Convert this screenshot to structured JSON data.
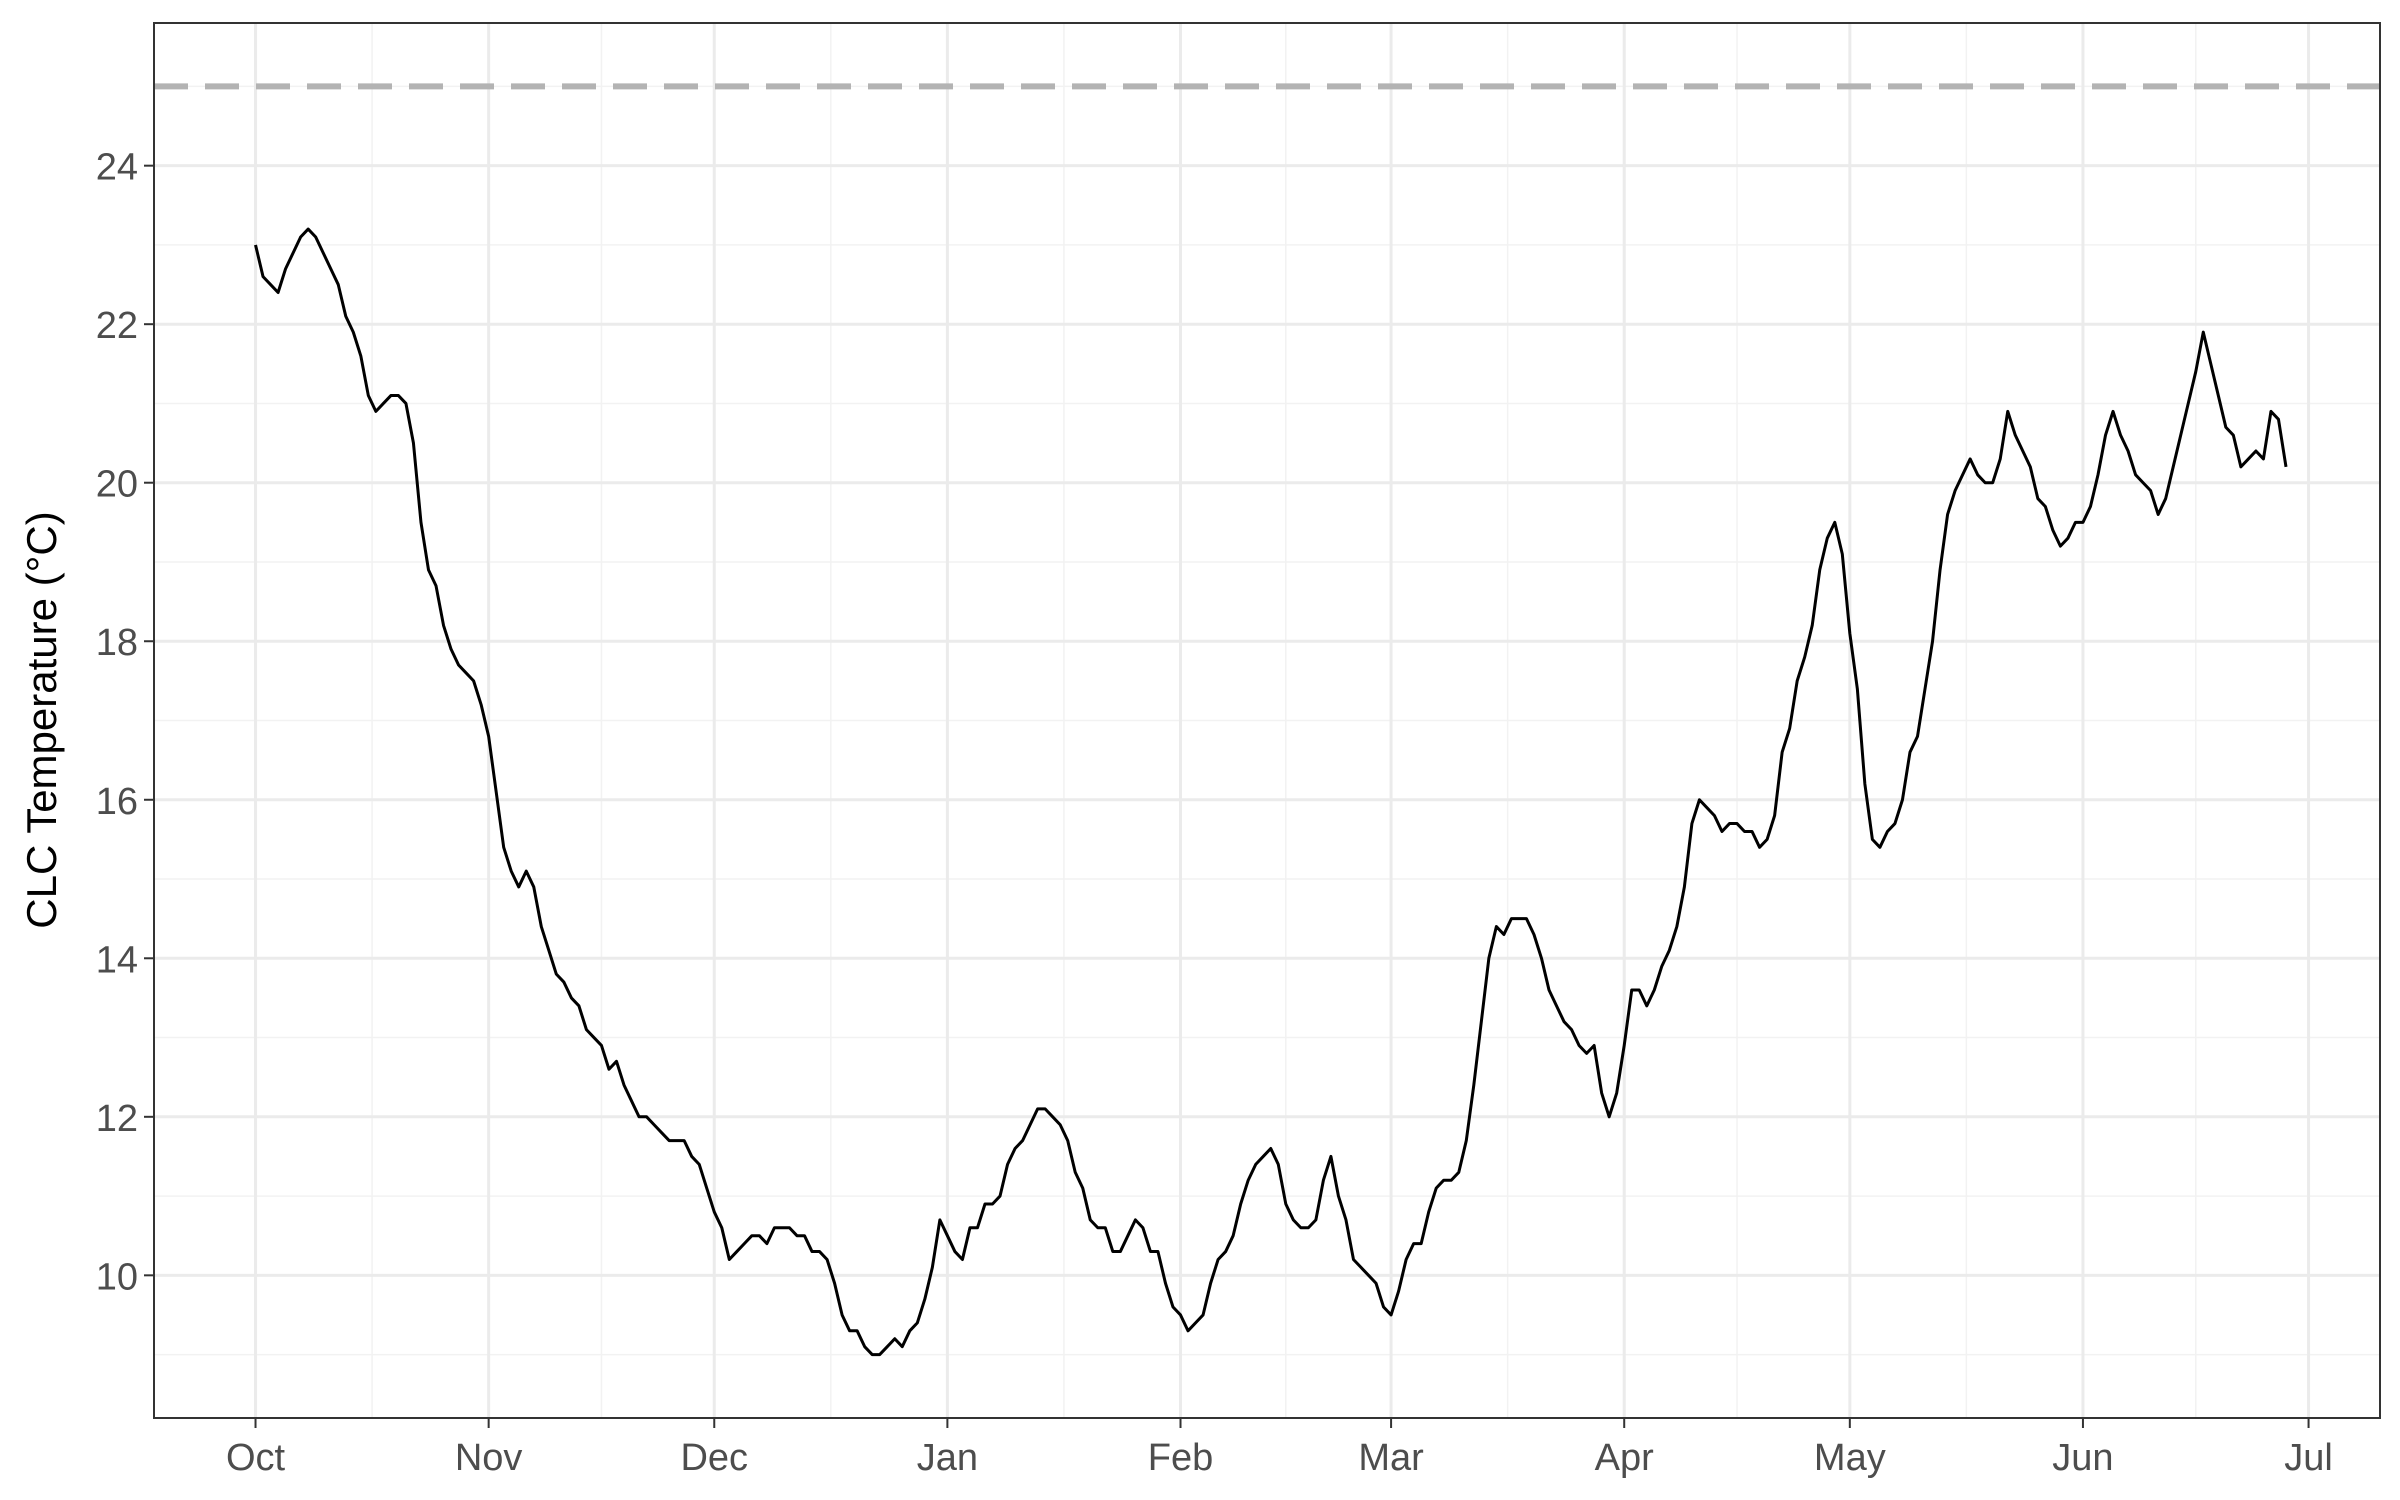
{
  "chart_data": {
    "type": "line",
    "y_label": "CLC Temperature (°C)",
    "color": "#000000",
    "hline": 25,
    "hline_color": "#b3b3b3",
    "grid": true,
    "xlim": [
      -13.5,
      282.5
    ],
    "xticks": [
      {
        "value": 0,
        "label": "Oct"
      },
      {
        "value": 31,
        "label": "Nov"
      },
      {
        "value": 61,
        "label": "Dec"
      },
      {
        "value": 92,
        "label": "Jan"
      },
      {
        "value": 123,
        "label": "Feb"
      },
      {
        "value": 151,
        "label": "Mar"
      },
      {
        "value": 182,
        "label": "Apr"
      },
      {
        "value": 212,
        "label": "May"
      },
      {
        "value": 243,
        "label": "Jun"
      },
      {
        "value": 273,
        "label": "Jul"
      }
    ],
    "ylim": [
      8.2,
      25.8
    ],
    "yticks": [
      10,
      12,
      14,
      16,
      18,
      20,
      22,
      24
    ],
    "x": [
      0,
      1,
      2,
      3,
      4,
      5,
      6,
      7,
      8,
      9,
      10,
      11,
      12,
      13,
      14,
      15,
      16,
      17,
      18,
      19,
      20,
      21,
      22,
      23,
      24,
      25,
      26,
      27,
      28,
      29,
      30,
      31,
      32,
      33,
      34,
      35,
      36,
      37,
      38,
      39,
      40,
      41,
      42,
      43,
      44,
      45,
      46,
      47,
      48,
      49,
      50,
      51,
      52,
      53,
      54,
      55,
      56,
      57,
      58,
      59,
      60,
      61,
      62,
      63,
      64,
      65,
      66,
      67,
      68,
      69,
      70,
      71,
      72,
      73,
      74,
      75,
      76,
      77,
      78,
      79,
      80,
      81,
      82,
      83,
      84,
      85,
      86,
      87,
      88,
      89,
      90,
      91,
      92,
      93,
      94,
      95,
      96,
      97,
      98,
      99,
      100,
      101,
      102,
      103,
      104,
      105,
      106,
      107,
      108,
      109,
      110,
      111,
      112,
      113,
      114,
      115,
      116,
      117,
      118,
      119,
      120,
      121,
      122,
      123,
      124,
      125,
      126,
      127,
      128,
      129,
      130,
      131,
      132,
      133,
      134,
      135,
      136,
      137,
      138,
      139,
      140,
      141,
      142,
      143,
      144,
      145,
      146,
      147,
      148,
      149,
      150,
      151,
      152,
      153,
      154,
      155,
      156,
      157,
      158,
      159,
      160,
      161,
      162,
      163,
      164,
      165,
      166,
      167,
      168,
      169,
      170,
      171,
      172,
      173,
      174,
      175,
      176,
      177,
      178,
      179,
      180,
      181,
      182,
      183,
      184,
      185,
      186,
      187,
      188,
      189,
      190,
      191,
      192,
      193,
      194,
      195,
      196,
      197,
      198,
      199,
      200,
      201,
      202,
      203,
      204,
      205,
      206,
      207,
      208,
      209,
      210,
      211,
      212,
      213,
      214,
      215,
      216,
      217,
      218,
      219,
      220,
      221,
      222,
      223,
      224,
      225,
      226,
      227,
      228,
      229,
      230,
      231,
      232,
      233,
      234,
      235,
      236,
      237,
      238,
      239,
      240,
      241,
      242,
      243,
      244,
      245,
      246,
      247,
      248,
      249,
      250,
      251,
      252,
      253,
      254,
      255,
      256,
      257,
      258,
      259,
      260,
      261,
      262,
      263,
      264,
      265,
      266,
      267,
      268,
      269,
      270
    ],
    "values": [
      23.0,
      22.6,
      22.5,
      22.4,
      22.7,
      22.9,
      23.1,
      23.2,
      23.1,
      22.9,
      22.7,
      22.5,
      22.1,
      21.9,
      21.6,
      21.1,
      20.9,
      21.0,
      21.1,
      21.1,
      21.0,
      20.5,
      19.5,
      18.9,
      18.7,
      18.2,
      17.9,
      17.7,
      17.6,
      17.5,
      17.2,
      16.8,
      16.1,
      15.4,
      15.1,
      14.9,
      15.1,
      14.9,
      14.4,
      14.1,
      13.8,
      13.7,
      13.5,
      13.4,
      13.1,
      13.0,
      12.9,
      12.6,
      12.7,
      12.4,
      12.2,
      12.0,
      12.0,
      11.9,
      11.8,
      11.7,
      11.7,
      11.7,
      11.5,
      11.4,
      11.1,
      10.8,
      10.6,
      10.2,
      10.3,
      10.4,
      10.5,
      10.5,
      10.4,
      10.6,
      10.6,
      10.6,
      10.5,
      10.5,
      10.3,
      10.3,
      10.2,
      9.9,
      9.5,
      9.3,
      9.3,
      9.1,
      9.0,
      9.0,
      9.1,
      9.2,
      9.1,
      9.3,
      9.4,
      9.7,
      10.1,
      10.7,
      10.5,
      10.3,
      10.2,
      10.6,
      10.6,
      10.9,
      10.9,
      11.0,
      11.4,
      11.6,
      11.7,
      11.9,
      12.1,
      12.1,
      12.0,
      11.9,
      11.7,
      11.3,
      11.1,
      10.7,
      10.6,
      10.6,
      10.3,
      10.3,
      10.5,
      10.7,
      10.6,
      10.3,
      10.3,
      9.9,
      9.6,
      9.5,
      9.3,
      9.4,
      9.5,
      9.9,
      10.2,
      10.3,
      10.5,
      10.9,
      11.2,
      11.4,
      11.5,
      11.6,
      11.4,
      10.9,
      10.7,
      10.6,
      10.6,
      10.7,
      11.2,
      11.5,
      11.0,
      10.7,
      10.2,
      10.1,
      10.0,
      9.9,
      9.6,
      9.5,
      9.8,
      10.2,
      10.4,
      10.4,
      10.8,
      11.1,
      11.2,
      11.2,
      11.3,
      11.7,
      12.4,
      13.2,
      14.0,
      14.4,
      14.3,
      14.5,
      14.5,
      14.5,
      14.3,
      14.0,
      13.6,
      13.4,
      13.2,
      13.1,
      12.9,
      12.8,
      12.9,
      12.3,
      12.0,
      12.3,
      12.9,
      13.6,
      13.6,
      13.4,
      13.6,
      13.9,
      14.1,
      14.4,
      14.9,
      15.7,
      16.0,
      15.9,
      15.8,
      15.6,
      15.7,
      15.7,
      15.6,
      15.6,
      15.4,
      15.5,
      15.8,
      16.6,
      16.9,
      17.5,
      17.8,
      18.2,
      18.9,
      19.3,
      19.5,
      19.1,
      18.1,
      17.4,
      16.2,
      15.5,
      15.4,
      15.6,
      15.7,
      16.0,
      16.6,
      16.8,
      17.4,
      18.0,
      18.9,
      19.6,
      19.9,
      20.1,
      20.3,
      20.1,
      20.0,
      20.0,
      20.3,
      20.9,
      20.6,
      20.4,
      20.2,
      19.8,
      19.7,
      19.4,
      19.2,
      19.3,
      19.5,
      19.5,
      19.7,
      20.1,
      20.6,
      20.9,
      20.6,
      20.4,
      20.1,
      20.0,
      19.9,
      19.6,
      19.8,
      20.2,
      20.6,
      21.0,
      21.4,
      21.9,
      21.5,
      21.1,
      20.7,
      20.6,
      20.2,
      20.3,
      20.4,
      20.3,
      20.9,
      20.8,
      20.2
    ]
  }
}
